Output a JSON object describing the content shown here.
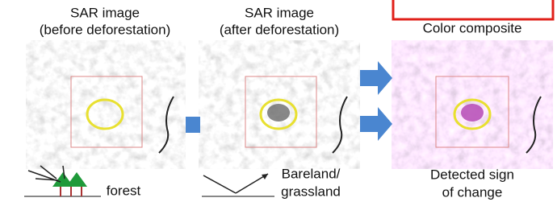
{
  "panels": [
    {
      "title": [
        "SAR image",
        "(before deforestation)"
      ],
      "caption": [
        "forest"
      ]
    },
    {
      "title": [
        "SAR image",
        "(after deforestation)"
      ],
      "caption": [
        "Bareland/",
        "grassland"
      ]
    },
    {
      "title": [
        "Color composite"
      ],
      "caption": [
        "Detected sign",
        "of change"
      ]
    }
  ]
}
